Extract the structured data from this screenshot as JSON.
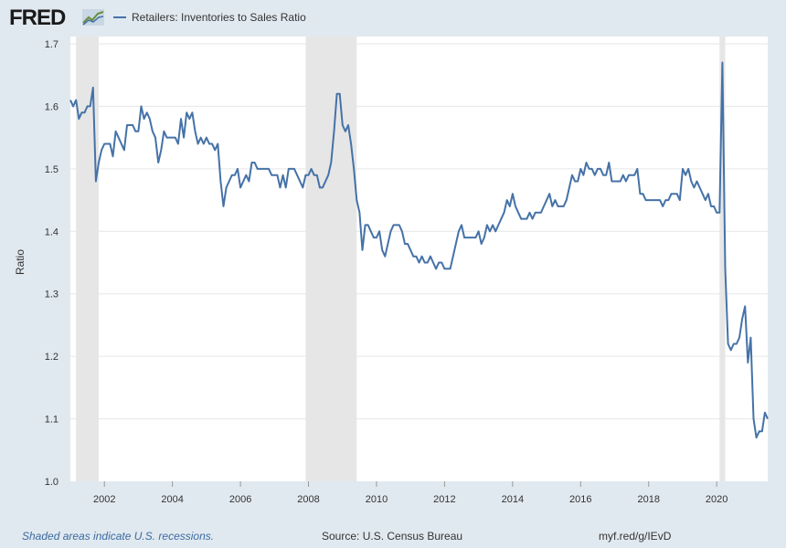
{
  "header": {
    "logo": "FRED",
    "legend_label": "Retailers: Inventories to Sales Ratio"
  },
  "footer": {
    "note": "Shaded areas indicate U.S. recessions.",
    "source": "Source: U.S. Census Bureau",
    "url": "myf.red/g/IEvD"
  },
  "colors": {
    "line": "#4572a7",
    "recession": "#e6e6e6",
    "background": "#e1e9f0",
    "grid": "#e6e6e6"
  },
  "chart_data": {
    "type": "line",
    "ylabel": "Ratio",
    "ylim": [
      1.0,
      1.7
    ],
    "yticks": [
      "1.0",
      "1.1",
      "1.2",
      "1.3",
      "1.4",
      "1.5",
      "1.6",
      "1.7"
    ],
    "xticks": [
      "2002",
      "2004",
      "2006",
      "2008",
      "2010",
      "2012",
      "2014",
      "2016",
      "2018",
      "2020"
    ],
    "xlim": [
      "2001-01",
      "2021-07"
    ],
    "grid": true,
    "legend": "top-left",
    "recessions": [
      [
        "2001-03",
        "2001-11"
      ],
      [
        "2007-12",
        "2009-06"
      ],
      [
        "2020-02",
        "2020-04"
      ]
    ],
    "series": [
      {
        "name": "Retailers: Inventories to Sales Ratio",
        "start": "2001-01",
        "frequency": "monthly",
        "values": [
          1.61,
          1.6,
          1.61,
          1.58,
          1.59,
          1.59,
          1.6,
          1.6,
          1.63,
          1.48,
          1.51,
          1.53,
          1.54,
          1.54,
          1.54,
          1.52,
          1.56,
          1.55,
          1.54,
          1.53,
          1.57,
          1.57,
          1.57,
          1.56,
          1.56,
          1.6,
          1.58,
          1.59,
          1.58,
          1.56,
          1.55,
          1.51,
          1.53,
          1.56,
          1.55,
          1.55,
          1.55,
          1.55,
          1.54,
          1.58,
          1.55,
          1.59,
          1.58,
          1.59,
          1.56,
          1.54,
          1.55,
          1.54,
          1.55,
          1.54,
          1.54,
          1.53,
          1.54,
          1.48,
          1.44,
          1.47,
          1.48,
          1.49,
          1.49,
          1.5,
          1.47,
          1.48,
          1.49,
          1.48,
          1.51,
          1.51,
          1.5,
          1.5,
          1.5,
          1.5,
          1.5,
          1.49,
          1.49,
          1.49,
          1.47,
          1.49,
          1.47,
          1.5,
          1.5,
          1.5,
          1.49,
          1.48,
          1.47,
          1.49,
          1.49,
          1.5,
          1.49,
          1.49,
          1.47,
          1.47,
          1.48,
          1.49,
          1.51,
          1.56,
          1.62,
          1.62,
          1.57,
          1.56,
          1.57,
          1.54,
          1.5,
          1.45,
          1.43,
          1.37,
          1.41,
          1.41,
          1.4,
          1.39,
          1.39,
          1.4,
          1.37,
          1.36,
          1.38,
          1.4,
          1.41,
          1.41,
          1.41,
          1.4,
          1.38,
          1.38,
          1.37,
          1.36,
          1.36,
          1.35,
          1.36,
          1.35,
          1.35,
          1.36,
          1.35,
          1.34,
          1.35,
          1.35,
          1.34,
          1.34,
          1.34,
          1.36,
          1.38,
          1.4,
          1.41,
          1.39,
          1.39,
          1.39,
          1.39,
          1.39,
          1.4,
          1.38,
          1.39,
          1.41,
          1.4,
          1.41,
          1.4,
          1.41,
          1.42,
          1.43,
          1.45,
          1.44,
          1.46,
          1.44,
          1.43,
          1.42,
          1.42,
          1.42,
          1.43,
          1.42,
          1.43,
          1.43,
          1.43,
          1.44,
          1.45,
          1.46,
          1.44,
          1.45,
          1.44,
          1.44,
          1.44,
          1.45,
          1.47,
          1.49,
          1.48,
          1.48,
          1.5,
          1.49,
          1.51,
          1.5,
          1.5,
          1.49,
          1.5,
          1.5,
          1.49,
          1.49,
          1.51,
          1.48,
          1.48,
          1.48,
          1.48,
          1.49,
          1.48,
          1.49,
          1.49,
          1.49,
          1.5,
          1.46,
          1.46,
          1.45,
          1.45,
          1.45,
          1.45,
          1.45,
          1.45,
          1.44,
          1.45,
          1.45,
          1.46,
          1.46,
          1.46,
          1.45,
          1.5,
          1.49,
          1.5,
          1.48,
          1.47,
          1.48,
          1.47,
          1.46,
          1.45,
          1.46,
          1.44,
          1.44,
          1.43,
          1.43,
          1.67,
          1.34,
          1.22,
          1.21,
          1.22,
          1.22,
          1.23,
          1.26,
          1.28,
          1.19,
          1.23,
          1.1,
          1.07,
          1.08,
          1.08,
          1.11,
          1.1
        ]
      }
    ]
  }
}
